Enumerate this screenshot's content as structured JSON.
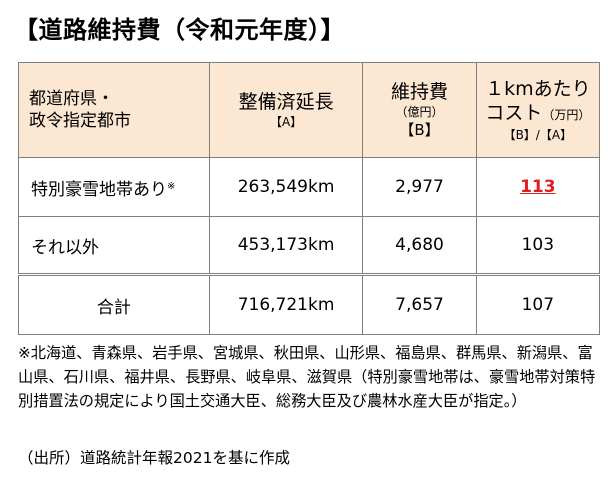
{
  "title": "【道路維持費（令和元年度）】",
  "table": {
    "headers": {
      "region": [
        "都道府県・",
        "政令指定都市"
      ],
      "length": {
        "label": "整備済延長",
        "tag": "【A】"
      },
      "maintenance": {
        "label": "維持費",
        "unit": "（億円）",
        "tag": "【B】"
      },
      "per_km": {
        "label": "１kmあたり",
        "label2": "コスト",
        "unit": "（万円）",
        "tag": "【B】/【A】"
      }
    },
    "rows": [
      {
        "label": "特別豪雪地帯あり",
        "mark": "※",
        "length": "263,549km",
        "maintenance": "2,977",
        "per_km": "113"
      },
      {
        "label": "それ以外",
        "length": "453,173km",
        "maintenance": "4,680",
        "per_km": "103"
      },
      {
        "label": "合計",
        "length": "716,721km",
        "maintenance": "7,657",
        "per_km": "107"
      }
    ]
  },
  "note": {
    "mark": "※",
    "text": "北海道、青森県、岩手県、宮城県、秋田県、山形県、福島県、群馬県、新潟県、富山県、石川県、福井県、長野県、岐阜県、滋賀県（特別豪雪地帯は、豪雪地帯対策特別措置法の規定により国土交通大臣、総務大臣及び農林水産大臣が指定。）"
  },
  "source": "（出所）道路統計年報2021を基に作成",
  "colors": {
    "header_bg": "#fce7d3",
    "highlight": "#e02020",
    "border": "#7f7f7f"
  }
}
